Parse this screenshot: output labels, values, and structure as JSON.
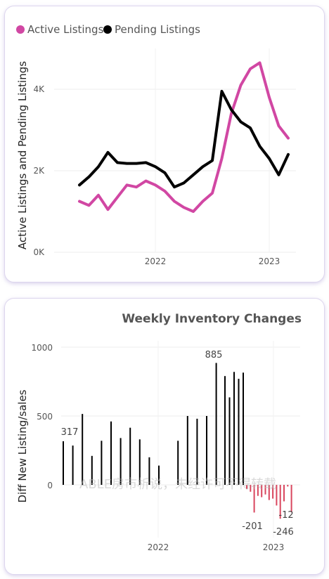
{
  "top_chart": {
    "legend": [
      {
        "label": "Active Listings",
        "color": "#d147a3"
      },
      {
        "label": "Pending Listings",
        "color": "#000000"
      }
    ],
    "ylabel": "Active Listings and Pending Listings",
    "yticks": [
      "0K",
      "2K",
      "4K"
    ],
    "xticks": [
      "2022",
      "2023"
    ]
  },
  "bottom_chart": {
    "title": "Weekly Inventory Changes",
    "ylabel": "Diff New Listing/sales",
    "yticks": [
      "0",
      "500",
      "1000"
    ],
    "xticks": [
      "2022",
      "2023"
    ],
    "data_labels": [
      "317",
      "885",
      "-201",
      "-246",
      "-12"
    ],
    "watermark": "ABLE房市析说，未经许可不得转载"
  },
  "chart_data": [
    {
      "type": "line",
      "title": "",
      "xlabel": "",
      "ylabel": "Active Listings and Pending Listings",
      "xlim": [
        "2021-05",
        "2023-03"
      ],
      "ylim": [
        0,
        5000
      ],
      "x": [
        "2021-05",
        "2021-06",
        "2021-07",
        "2021-08",
        "2021-09",
        "2021-10",
        "2021-11",
        "2021-12",
        "2022-01",
        "2022-02",
        "2022-03",
        "2022-04",
        "2022-05",
        "2022-06",
        "2022-07",
        "2022-08",
        "2022-09",
        "2022-10",
        "2022-11",
        "2022-12",
        "2023-01",
        "2023-02",
        "2023-03"
      ],
      "series": [
        {
          "name": "Active Listings",
          "color": "#d147a3",
          "values": [
            1250,
            1150,
            1400,
            1050,
            1350,
            1650,
            1600,
            1750,
            1650,
            1500,
            1250,
            1100,
            1000,
            1250,
            1450,
            2300,
            3400,
            4100,
            4500,
            4650,
            3800,
            3100,
            2800
          ]
        },
        {
          "name": "Pending Listings",
          "color": "#000000",
          "values": [
            1650,
            1850,
            2100,
            2450,
            2200,
            2180,
            2180,
            2200,
            2100,
            1950,
            1600,
            1700,
            1900,
            2100,
            2250,
            3950,
            3500,
            3200,
            3050,
            2600,
            2300,
            1900,
            2400
          ]
        }
      ],
      "grid": true,
      "legend": "top-left"
    },
    {
      "type": "bar",
      "title": "Weekly Inventory Changes",
      "xlabel": "",
      "ylabel": "Diff New Listing/sales",
      "ylim": [
        -400,
        1000
      ],
      "values": [
        317,
        285,
        515,
        210,
        320,
        460,
        340,
        415,
        330,
        200,
        140,
        0,
        320,
        500,
        480,
        500,
        885,
        790,
        635,
        820,
        770,
        815,
        -30,
        -50,
        -201,
        -80,
        -90,
        -70,
        -110,
        -100,
        -150,
        -246,
        -120,
        -12,
        -200
      ],
      "highlight": {
        "max": 885,
        "min": -246
      },
      "grid": true
    }
  ]
}
